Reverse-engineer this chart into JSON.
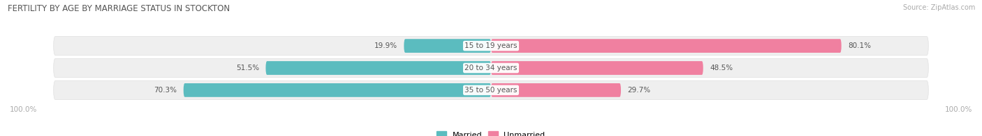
{
  "title": "FERTILITY BY AGE BY MARRIAGE STATUS IN STOCKTON",
  "source": "Source: ZipAtlas.com",
  "categories": [
    "15 to 19 years",
    "20 to 34 years",
    "35 to 50 years"
  ],
  "married_pct": [
    19.9,
    51.5,
    70.3
  ],
  "unmarried_pct": [
    80.1,
    48.5,
    29.7
  ],
  "married_color": "#5bbcbf",
  "unmarried_color": "#f080a0",
  "row_bg_color": "#efefef",
  "row_border_color": "#e0e0e0",
  "married_label": "Married",
  "unmarried_label": "Unmarried",
  "title_fontsize": 8.5,
  "source_fontsize": 7.0,
  "label_fontsize": 7.5,
  "axis_label_fontsize": 7.5,
  "background_color": "#ffffff",
  "left_axis_label": "100.0%",
  "right_axis_label": "100.0%",
  "title_color": "#555555",
  "pct_label_color": "#555555",
  "category_label_color": "#555555"
}
